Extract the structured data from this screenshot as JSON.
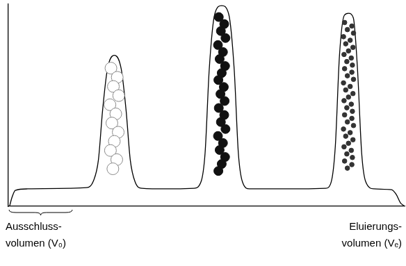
{
  "chart_data": {
    "type": "line",
    "x": [
      2,
      5,
      10,
      28,
      88,
      113,
      123,
      130,
      136,
      143,
      153,
      163,
      170,
      176,
      183,
      193,
      228,
      268,
      278,
      284,
      290,
      298,
      308,
      318,
      326,
      332,
      338,
      348,
      408,
      458,
      466,
      472,
      478,
      485,
      491,
      498,
      504,
      510,
      516,
      528,
      553,
      560,
      566,
      571
    ],
    "values": [
      0.3,
      4.1,
      7.9,
      8.6,
      8.9,
      9.2,
      12.7,
      22.9,
      47.3,
      67.8,
      74.7,
      67.8,
      47.3,
      22.9,
      12.0,
      8.9,
      8.6,
      8.9,
      12.0,
      26.4,
      67.8,
      95.2,
      99.3,
      95.2,
      67.8,
      26.4,
      12.0,
      8.6,
      8.6,
      8.9,
      12.0,
      29.8,
      74.7,
      94.5,
      95.5,
      93.2,
      67.8,
      26.4,
      12.0,
      8.6,
      8.2,
      5.8,
      1.7,
      0.3
    ],
    "color": "#000000",
    "xlim": [
      0,
      572
    ],
    "ylim": [
      0,
      100
    ],
    "grid": false,
    "tick_labels": false,
    "annotations": [
      "Ausschluss-\nvolumen (V₀)",
      "Eluierungs-\nvolumen (Vₑ)"
    ]
  }
}
